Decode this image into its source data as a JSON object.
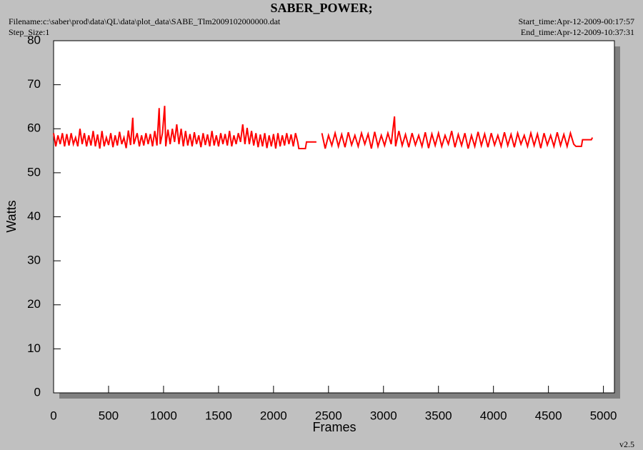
{
  "chart_data": {
    "type": "line",
    "title": "SABER_POWER;",
    "filename": "Filename:c:\\saber\\prod\\data\\QL\\data\\plot_data\\SABE_Tlm2009102000000.dat",
    "step_size": "Step_Size:1",
    "start_time": "Start_time:Apr-12-2009-00:17:57",
    "end_time": "End_time:Apr-12-2009-10:37:31",
    "version": "v2.5",
    "x_label": "Frames",
    "y_label": "Watts",
    "xlim": [
      0,
      5100
    ],
    "ylim": [
      0,
      80
    ],
    "xticks": [
      0,
      500,
      1000,
      1500,
      2000,
      2500,
      3000,
      3500,
      4000,
      4500,
      5000
    ],
    "yticks": [
      0,
      10,
      20,
      30,
      40,
      50,
      60,
      70,
      80
    ],
    "grid": false,
    "series": [
      {
        "color": "#ff0000",
        "x": [
          0,
          20,
          40,
          60,
          80,
          100,
          120,
          140,
          160,
          180,
          200,
          220,
          240,
          260,
          280,
          300,
          320,
          340,
          360,
          380,
          400,
          420,
          440,
          460,
          480,
          500,
          520,
          540,
          560,
          580,
          600,
          620,
          640,
          660,
          680,
          700,
          720,
          730,
          760,
          780,
          800,
          820,
          840,
          860,
          880,
          900,
          920,
          940,
          960,
          970,
          990,
          1010,
          1020,
          1040,
          1060,
          1080,
          1100,
          1120,
          1140,
          1160,
          1180,
          1200,
          1220,
          1240,
          1260,
          1280,
          1300,
          1320,
          1340,
          1360,
          1380,
          1400,
          1420,
          1440,
          1460,
          1480,
          1500,
          1520,
          1540,
          1560,
          1580,
          1600,
          1620,
          1640,
          1660,
          1680,
          1700,
          1720,
          1740,
          1760,
          1780,
          1800,
          1820,
          1840,
          1860,
          1880,
          1900,
          1920,
          1940,
          1960,
          1980,
          2000,
          2020,
          2040,
          2060,
          2080,
          2100,
          2120,
          2140,
          2160,
          2180,
          2200,
          2220,
          2230,
          2290,
          2300,
          2390,
          2410,
          2440,
          2470,
          2500,
          2530,
          2560,
          2590,
          2620,
          2650,
          2680,
          2710,
          2740,
          2770,
          2800,
          2830,
          2860,
          2890,
          2920,
          2950,
          2980,
          3010,
          3040,
          3070,
          3100,
          3110,
          3140,
          3170,
          3200,
          3230,
          3260,
          3290,
          3320,
          3350,
          3380,
          3410,
          3440,
          3470,
          3500,
          3530,
          3560,
          3590,
          3620,
          3650,
          3680,
          3710,
          3740,
          3770,
          3800,
          3830,
          3860,
          3890,
          3920,
          3950,
          3980,
          4010,
          4040,
          4070,
          4100,
          4130,
          4160,
          4190,
          4220,
          4250,
          4280,
          4310,
          4340,
          4370,
          4400,
          4430,
          4460,
          4490,
          4520,
          4550,
          4580,
          4610,
          4640,
          4670,
          4700,
          4730,
          4750,
          4800,
          4810,
          4890,
          4900
        ],
        "values": [
          59,
          56,
          58.5,
          56.5,
          59,
          56,
          58.8,
          56.2,
          59,
          56.5,
          58,
          56,
          60,
          56.5,
          59,
          56,
          58.5,
          56.2,
          59.5,
          56,
          58.7,
          55.5,
          59.5,
          56,
          58,
          56.3,
          59,
          55.8,
          58.5,
          56.2,
          59.3,
          56.5,
          58,
          55.6,
          59.6,
          56.3,
          62.5,
          56.5,
          59,
          56,
          58.5,
          56.2,
          59,
          56.5,
          58.8,
          56,
          59.5,
          56.2,
          64.7,
          56.5,
          59,
          65.2,
          56,
          59.8,
          56.5,
          60,
          57,
          61,
          56.5,
          60,
          56,
          59.5,
          56.2,
          58.8,
          56,
          59.2,
          56.5,
          58.5,
          55.8,
          59,
          56.3,
          58.7,
          56,
          59.5,
          56.2,
          58.5,
          56,
          59,
          56.5,
          58.8,
          56.2,
          59.5,
          56,
          58.5,
          56.5,
          59,
          57,
          61,
          56.5,
          60.2,
          56.5,
          59.5,
          56.2,
          59,
          55.8,
          58.7,
          56,
          59,
          55.6,
          58.5,
          56,
          58.8,
          55.5,
          59,
          56,
          58.5,
          56.2,
          59,
          56.5,
          58.7,
          56,
          59,
          57,
          55.5,
          55.5,
          57,
          57,
          null,
          59,
          55.5,
          58.5,
          56.2,
          59,
          56,
          58.7,
          55.8,
          59.2,
          56.3,
          58.5,
          56,
          59,
          56.5,
          58.8,
          55.5,
          59.3,
          56,
          58.5,
          56.2,
          59,
          56.5,
          62.8,
          56,
          59.5,
          56.2,
          58.7,
          55.8,
          59,
          56.3,
          58.5,
          56,
          59.2,
          55.6,
          58.8,
          56.2,
          59,
          56,
          58.5,
          56.5,
          59.5,
          55.8,
          58.7,
          56.2,
          59,
          55.5,
          58.5,
          56,
          59.3,
          56.2,
          58.8,
          55.8,
          59,
          56.3,
          58.5,
          56,
          59.2,
          56.2,
          58.7,
          55.8,
          59,
          56.5,
          58.5,
          56,
          59,
          56.2,
          58.8,
          55.6,
          59,
          56.3,
          58.5,
          56,
          59.2,
          56.2,
          58.7,
          56,
          59,
          56.5,
          56,
          56,
          57.5,
          57.5,
          58
        ]
      }
    ]
  }
}
